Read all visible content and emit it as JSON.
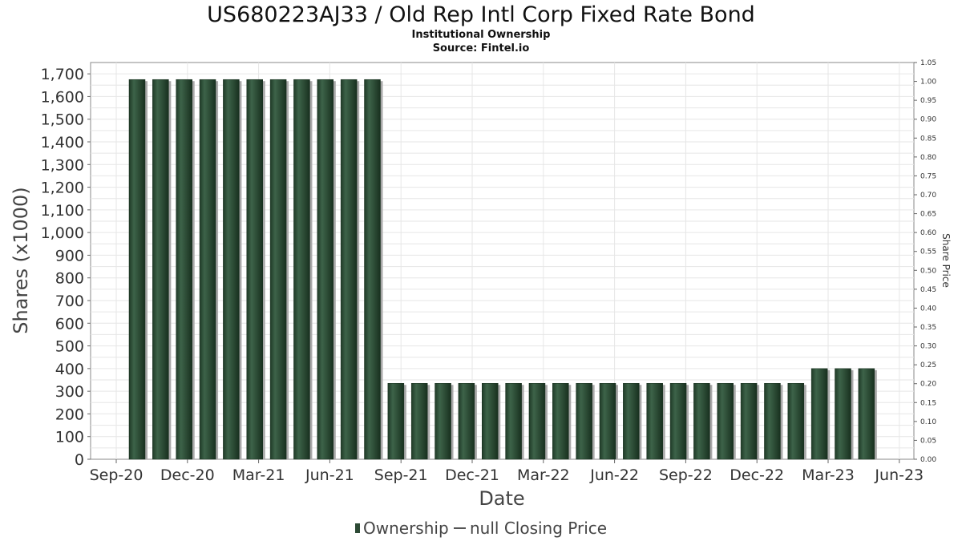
{
  "chart_data": {
    "type": "bar",
    "title": "US680223AJ33 / Old Rep Intl Corp Fixed Rate Bond",
    "subtitle": "Institutional Ownership",
    "source": "Source: Fintel.io",
    "xlabel": "Date",
    "ylabel": "Shares (x1000)",
    "ylabel_right": "Share Price",
    "ylim": [
      0,
      1750
    ],
    "ylim_right": [
      0,
      1.05
    ],
    "yticks": [
      "0",
      "100",
      "200",
      "300",
      "400",
      "500",
      "600",
      "700",
      "800",
      "900",
      "1,000",
      "1,100",
      "1,200",
      "1,300",
      "1,400",
      "1,500",
      "1,600",
      "1,700"
    ],
    "yticks_right": [
      "0.00",
      "0.05",
      "0.10",
      "0.15",
      "0.20",
      "0.25",
      "0.30",
      "0.35",
      "0.40",
      "0.45",
      "0.50",
      "0.55",
      "0.60",
      "0.65",
      "0.70",
      "0.75",
      "0.80",
      "0.85",
      "0.90",
      "0.95",
      "1.00",
      "1.05"
    ],
    "xticks": [
      "Sep-20",
      "Dec-20",
      "Mar-21",
      "Jun-21",
      "Sep-21",
      "Dec-21",
      "Mar-22",
      "Jun-22",
      "Sep-22",
      "Dec-22",
      "Mar-23",
      "Jun-23"
    ],
    "grid": true,
    "legend_position": "bottom",
    "series": [
      {
        "name": "Ownership",
        "color": "#2d4a35",
        "values": [
          1675,
          1675,
          1675,
          1675,
          1675,
          1675,
          1675,
          1675,
          1675,
          1675,
          1675,
          335,
          335,
          335,
          335,
          335,
          335,
          335,
          335,
          335,
          335,
          335,
          335,
          335,
          335,
          335,
          335,
          335,
          335,
          400,
          400,
          400
        ]
      },
      {
        "name": "null Closing Price",
        "color": "#555555",
        "values": []
      }
    ]
  },
  "legend": {
    "ownership": "Ownership",
    "price": "null Closing Price"
  }
}
